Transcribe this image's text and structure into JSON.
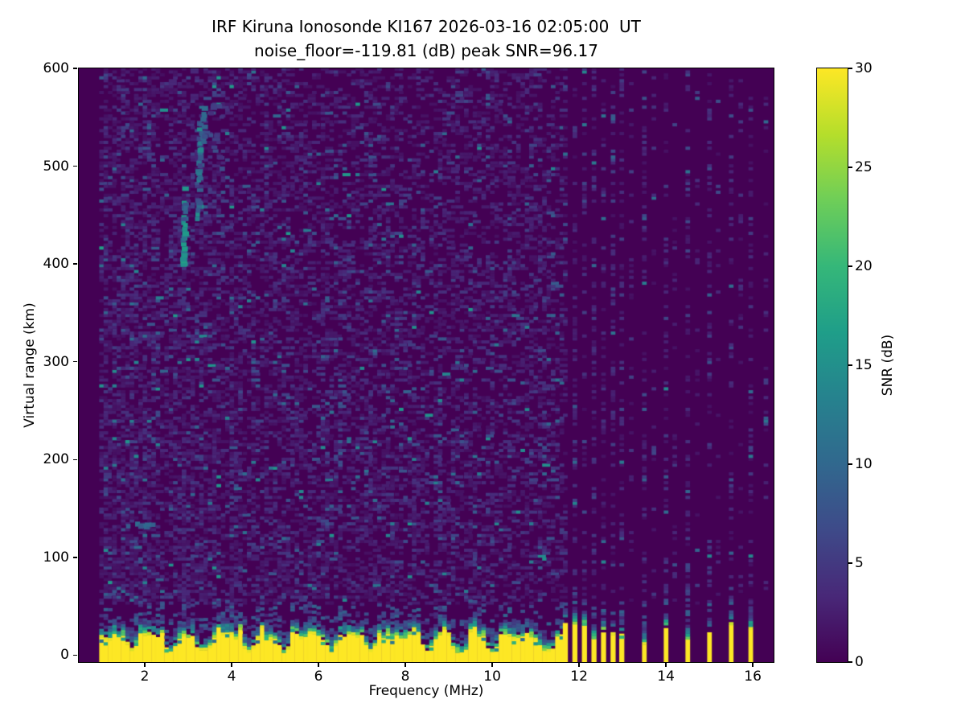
{
  "title": {
    "line1": "IRF Kiruna Ionosonde KI167 2026-03-16 02:05:00  UT",
    "line2": "noise_floor=-119.81 (dB) peak SNR=96.17"
  },
  "chart_data": {
    "type": "heatmap",
    "title": "IRF Kiruna Ionosonde KI167 2026-03-16 02:05:00  UT",
    "subtitle": "noise_floor=-119.81 (dB) peak SNR=96.17",
    "station": "IRF Kiruna Ionosonde KI167",
    "timestamp_ut": "2026-03-16 02:05:00",
    "noise_floor_db": -119.81,
    "peak_snr_db": 96.17,
    "xlabel": "Frequency (MHz)",
    "ylabel": "Virtual range (km)",
    "xlim": [
      0.48,
      16.48
    ],
    "ylim": [
      -7,
      600
    ],
    "x_ticks": [
      2,
      4,
      6,
      8,
      10,
      12,
      14,
      16
    ],
    "y_ticks": [
      0,
      100,
      200,
      300,
      400,
      500,
      600
    ],
    "grid": false,
    "legend": "none",
    "colormap": "viridis",
    "colormap_stops": [
      "#440154",
      "#482878",
      "#3e4a89",
      "#31688e",
      "#26828e",
      "#1f9e89",
      "#35b779",
      "#6ece58",
      "#b5de2b",
      "#fde725"
    ],
    "colorbar": {
      "label": "SNR (dB)",
      "range": [
        0,
        30
      ],
      "ticks": [
        0,
        5,
        10,
        15,
        20,
        25,
        30
      ],
      "position": "right"
    },
    "sweep": {
      "continuous_sweep_mhz": [
        0.95,
        11.55
      ],
      "no_data_below_mhz": 0.95,
      "dense_stripe_freqs_mhz": [
        11.68,
        11.9,
        12.12,
        12.34,
        12.56,
        12.78,
        12.98
      ],
      "sparse_stripe_freqs_mhz": [
        13.5,
        14.0,
        14.5,
        15.0,
        15.5,
        15.95
      ],
      "faint_column_freqs_mhz": [
        13.2,
        13.72,
        14.2,
        14.72,
        15.2,
        15.72,
        16.3
      ]
    },
    "features": {
      "background_snr_db": 0,
      "noise_speckle_snr_db": [
        1.5,
        16
      ],
      "ground_clutter": {
        "snr_db": 30,
        "top_km_range": [
          14,
          40
        ],
        "notch_freqs_mhz": [
          1.67,
          2.6,
          3.35,
          4.37,
          5.2,
          6.26,
          7.2,
          8.5,
          9.25,
          10.0,
          11.25
        ]
      },
      "f_region_echo": {
        "freq_mhz": [
          2.78,
          3.42
        ],
        "virtual_range_km": [
          395,
          565
        ],
        "peak_snr_db": 18
      },
      "f_region_echo_second": {
        "freq_mhz": [
          3.45,
          3.75
        ],
        "virtual_range_km": [
          480,
          565
        ],
        "peak_snr_db": 9
      },
      "sporadic_e_echo": {
        "freq_mhz": [
          1.55,
          2.15
        ],
        "virtual_range_km": 130,
        "peak_snr_db": 11
      }
    },
    "render_seed": 1337
  }
}
